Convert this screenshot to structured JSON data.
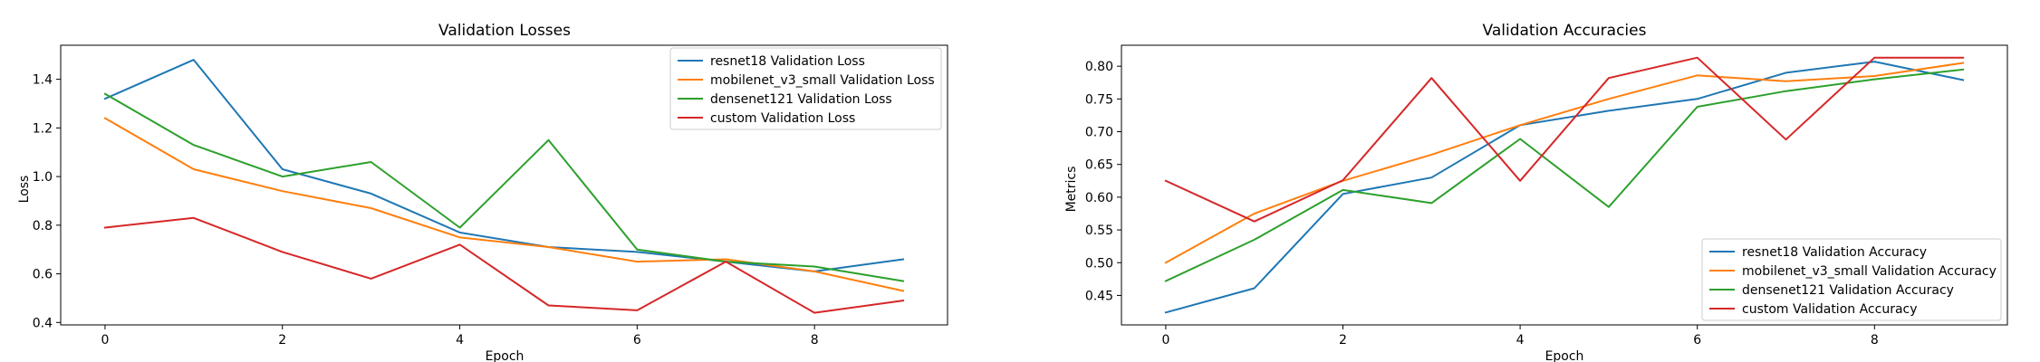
{
  "chart_data": [
    {
      "type": "line",
      "title": "Validation Losses",
      "xlabel": "Epoch",
      "ylabel": "Loss",
      "x": [
        0,
        1,
        2,
        3,
        4,
        5,
        6,
        7,
        8,
        9
      ],
      "xlim": [
        -0.5,
        9.5
      ],
      "ylim": [
        0.39,
        1.54
      ],
      "xticks": [
        0,
        2,
        4,
        6,
        8
      ],
      "yticks": [
        0.4,
        0.6,
        0.8,
        1.0,
        1.2,
        1.4
      ],
      "ytick_decimals": 1,
      "grid": false,
      "legend_position": "upper right",
      "series": [
        {
          "name": "resnet18 Validation Loss",
          "color": "#1f77b4",
          "values": [
            1.32,
            1.48,
            1.03,
            0.93,
            0.77,
            0.71,
            0.69,
            0.65,
            0.61,
            0.66
          ]
        },
        {
          "name": "mobilenet_v3_small Validation Loss",
          "color": "#ff7f0e",
          "values": [
            1.24,
            1.03,
            0.94,
            0.87,
            0.75,
            0.71,
            0.65,
            0.66,
            0.61,
            0.53
          ]
        },
        {
          "name": "densenet121 Validation Loss",
          "color": "#2ca02c",
          "values": [
            1.34,
            1.13,
            1.0,
            1.06,
            0.79,
            1.15,
            0.7,
            0.65,
            0.63,
            0.57
          ]
        },
        {
          "name": "custom Validation Loss",
          "color": "#d62728",
          "values": [
            0.79,
            0.83,
            0.69,
            0.58,
            0.72,
            0.47,
            0.45,
            0.65,
            0.44,
            0.49
          ]
        }
      ]
    },
    {
      "type": "line",
      "title": "Validation Accuracies",
      "xlabel": "Epoch",
      "ylabel": "Metrics",
      "x": [
        0,
        1,
        2,
        3,
        4,
        5,
        6,
        7,
        8,
        9
      ],
      "xlim": [
        -0.5,
        9.5
      ],
      "ylim": [
        0.405,
        0.832
      ],
      "xticks": [
        0,
        2,
        4,
        6,
        8
      ],
      "yticks": [
        0.45,
        0.5,
        0.55,
        0.6,
        0.65,
        0.7,
        0.75,
        0.8
      ],
      "ytick_decimals": 2,
      "grid": false,
      "legend_position": "lower right",
      "series": [
        {
          "name": "resnet18 Validation Accuracy",
          "color": "#1f77b4",
          "values": [
            0.424,
            0.461,
            0.605,
            0.63,
            0.71,
            0.732,
            0.75,
            0.79,
            0.807,
            0.779
          ]
        },
        {
          "name": "mobilenet_v3_small Validation Accuracy",
          "color": "#ff7f0e",
          "values": [
            0.5,
            0.575,
            0.625,
            0.665,
            0.71,
            0.75,
            0.786,
            0.777,
            0.785,
            0.805
          ]
        },
        {
          "name": "densenet121 Validation Accuracy",
          "color": "#2ca02c",
          "values": [
            0.472,
            0.535,
            0.611,
            0.591,
            0.689,
            0.585,
            0.738,
            0.762,
            0.78,
            0.795
          ]
        },
        {
          "name": "custom Validation Accuracy",
          "color": "#d62728",
          "values": [
            0.625,
            0.563,
            0.626,
            0.782,
            0.625,
            0.782,
            0.813,
            0.688,
            0.813,
            0.813
          ]
        }
      ]
    }
  ]
}
